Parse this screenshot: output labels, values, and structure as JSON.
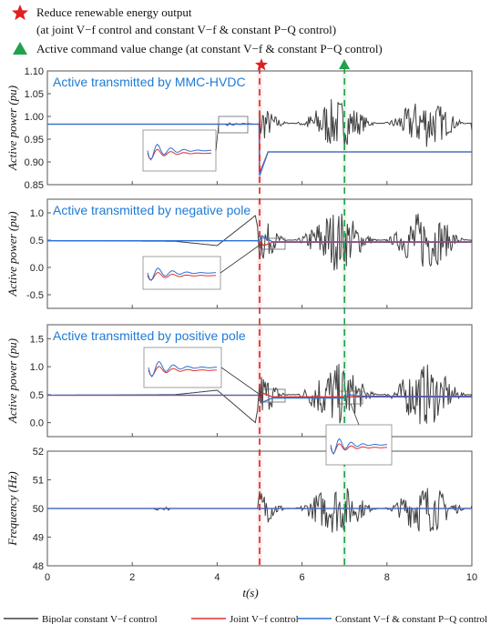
{
  "legend_top": {
    "line1": "Reduce renewable energy output",
    "line2": "(at joint V−f control and constant V−f & constant P−Q control)",
    "line3": "Active command value change (at constant V−f & constant P−Q control)",
    "star_color": "#e02020",
    "triangle_color": "#22a04a"
  },
  "legend_bottom": {
    "items": [
      {
        "label": "Bipolar constant V−f control",
        "color": "#404040"
      },
      {
        "label": "Joint V−f control",
        "color": "#e03030"
      },
      {
        "label": "Constant V−f & constant P−Q control",
        "color": "#2f6fd6"
      }
    ]
  },
  "chart_data": [
    {
      "type": "line",
      "title": "Active transmitted by MMC-HVDC",
      "ylabel": "Active power (pu)",
      "ylim": [
        0.85,
        1.1
      ],
      "yticks": [
        "0.85",
        "0.90",
        "0.95",
        "1.00",
        "1.05",
        "1.10"
      ],
      "xlim": [
        0,
        10
      ],
      "series": [
        {
          "name": "Bipolar constant V−f control",
          "x": [
            0,
            4.99,
            5.0,
            5.3,
            6,
            7,
            8,
            9,
            10
          ],
          "y": [
            0.983,
            0.983,
            0.9,
            0.97,
            0.99,
            1.0,
            1.0,
            0.98,
            0.97
          ]
        },
        {
          "name": "Joint V−f control",
          "x": [
            0,
            4.99,
            5.0,
            5.2,
            10
          ],
          "y": [
            0.983,
            0.983,
            0.875,
            0.922,
            0.922
          ]
        },
        {
          "name": "Constant V−f & constant P−Q control",
          "x": [
            0,
            4.99,
            5.0,
            5.2,
            10
          ],
          "y": [
            0.983,
            0.983,
            0.87,
            0.922,
            0.922
          ]
        }
      ]
    },
    {
      "type": "line",
      "title": "Active transmitted by negative pole",
      "ylabel": "Active power (pu)",
      "ylim": [
        -0.75,
        1.25
      ],
      "yticks": [
        "-0.5",
        "0.0",
        "0.5",
        "1.0"
      ],
      "xlim": [
        0,
        10
      ],
      "series": [
        {
          "name": "Bipolar constant V−f control",
          "x": [
            0,
            3,
            4,
            4.9,
            5.0,
            10
          ],
          "y": [
            0.49,
            0.48,
            0.4,
            0.95,
            0.55,
            0.45
          ]
        },
        {
          "name": "Joint V−f control",
          "x": [
            0,
            4.99,
            5.1,
            5.3,
            10
          ],
          "y": [
            0.49,
            0.49,
            0.4,
            0.46,
            0.46
          ]
        },
        {
          "name": "Constant V−f & constant P−Q control",
          "x": [
            0,
            4.99,
            5.05,
            5.3,
            10
          ],
          "y": [
            0.49,
            0.49,
            0.58,
            0.47,
            0.47
          ]
        }
      ]
    },
    {
      "type": "line",
      "title": "Active transmitted by positive pole",
      "ylabel": "Active power (pu)",
      "ylim": [
        -0.25,
        1.75
      ],
      "yticks": [
        "0.0",
        "0.5",
        "1.0",
        "1.5"
      ],
      "xlim": [
        0,
        10
      ],
      "series": [
        {
          "name": "Bipolar constant V−f control",
          "x": [
            0,
            3,
            4,
            4.9,
            5.0,
            10
          ],
          "y": [
            0.49,
            0.5,
            0.58,
            0.0,
            0.45,
            0.45
          ]
        },
        {
          "name": "Joint V−f control",
          "x": [
            0,
            4.99,
            5.1,
            5.3,
            10
          ],
          "y": [
            0.49,
            0.49,
            0.52,
            0.46,
            0.46
          ]
        },
        {
          "name": "Constant V−f & constant P−Q control",
          "x": [
            0,
            4.99,
            5.05,
            5.3,
            7.0,
            7.1,
            7.4,
            10
          ],
          "y": [
            0.49,
            0.49,
            0.36,
            0.44,
            0.44,
            0.5,
            0.47,
            0.47
          ]
        }
      ]
    },
    {
      "type": "line",
      "title": "",
      "ylabel": "Frequency (Hz)",
      "ylim": [
        48,
        52
      ],
      "yticks": [
        "48",
        "49",
        "50",
        "51",
        "52"
      ],
      "xlim": [
        0,
        10
      ],
      "xticks": [
        "0",
        "2",
        "4",
        "6",
        "8",
        "10"
      ],
      "xlabel": "t(s)",
      "series": [
        {
          "name": "Bipolar constant V−f control",
          "x": [
            0,
            2.5,
            2.8,
            5.0,
            6,
            7,
            8,
            9,
            10
          ],
          "y": [
            50,
            50,
            50,
            50,
            50.5,
            49.6,
            50.8,
            49.5,
            50.1
          ]
        },
        {
          "name": "Joint V−f control",
          "x": [
            0,
            10
          ],
          "y": [
            50,
            50
          ]
        },
        {
          "name": "Constant V−f & constant P−Q control",
          "x": [
            0,
            10
          ],
          "y": [
            50,
            50
          ]
        }
      ]
    }
  ],
  "events": {
    "star_time": 5,
    "triangle_time": 7
  }
}
